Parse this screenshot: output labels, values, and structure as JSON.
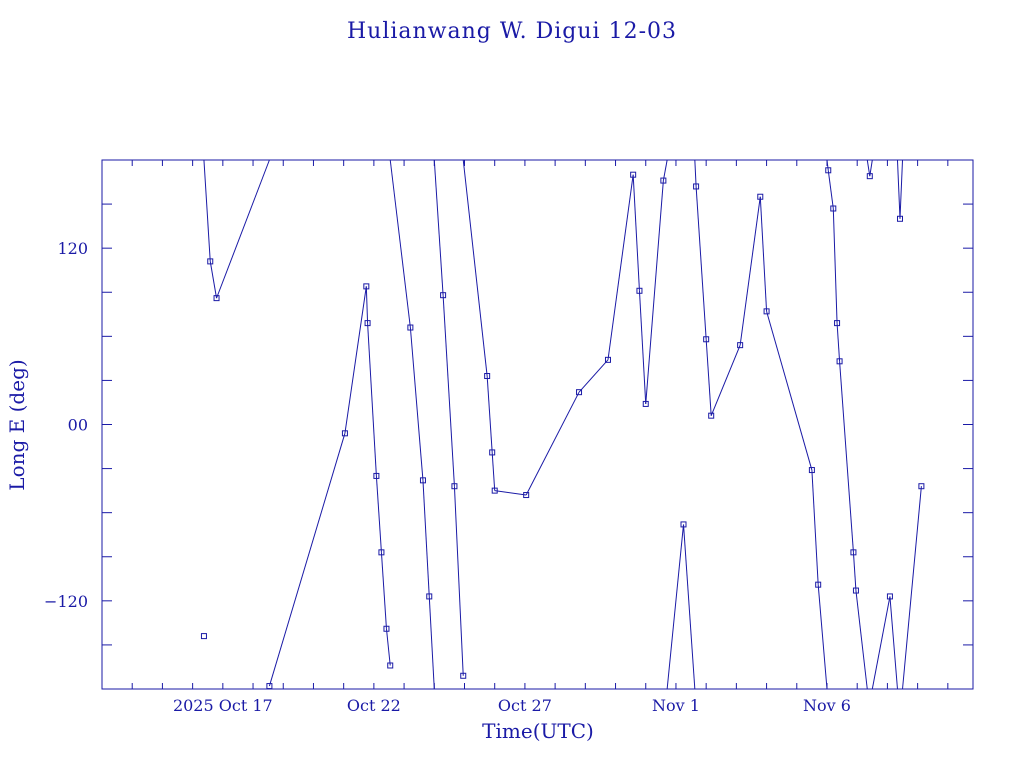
{
  "chart_data": {
    "type": "line",
    "title": "Hulianwang W. Digui 12-03",
    "xlabel": "Time(UTC)",
    "ylabel": "Long E (deg)",
    "ylim": [
      -180,
      180
    ],
    "xlim": [
      "2025-10-13T00:00",
      "2025-11-10T20:00"
    ],
    "x_tick_labels": [
      {
        "x": "2025-10-17T00:00",
        "label": "2025 Oct 17"
      },
      {
        "x": "2025-10-22T00:00",
        "label": "Oct 22"
      },
      {
        "x": "2025-10-27T00:00",
        "label": "Oct 27"
      },
      {
        "x": "2025-11-01T00:00",
        "label": "Nov  1"
      },
      {
        "x": "2025-11-06T00:00",
        "label": "Nov  6"
      }
    ],
    "y_tick_labels": [
      {
        "y": 120,
        "label": "120"
      },
      {
        "y": 0,
        "label": "00"
      },
      {
        "y": -120,
        "label": "−120"
      }
    ],
    "grid": false,
    "color": "#1a1aa6",
    "series": [
      {
        "marker": "square",
        "points": [
          [
            "2025-10-16T09:00",
            -144
          ],
          [
            "2025-10-16T09:00",
            180
          ],
          [
            "2025-10-16T14:00",
            111
          ],
          [
            "2025-10-16T19:00",
            86
          ],
          [
            "2025-10-18T13:00",
            180
          ],
          [
            "2025-10-18T13:00",
            -178
          ],
          [
            "2025-10-21T01:00",
            -6
          ],
          [
            "2025-10-21T18:00",
            94
          ],
          [
            "2025-10-21T19:00",
            69
          ],
          [
            "2025-10-22T02:00",
            -35
          ],
          [
            "2025-10-22T06:00",
            -87
          ],
          [
            "2025-10-22T10:00",
            -139
          ],
          [
            "2025-10-22T13:00",
            -164
          ],
          [
            "2025-10-22T13:00",
            180
          ],
          [
            "2025-10-23T05:00",
            66
          ],
          [
            "2025-10-23T15:00",
            -38
          ],
          [
            "2025-10-23T20:00",
            -117
          ],
          [
            "2025-10-24T00:00",
            -180
          ],
          [
            "2025-10-24T00:00",
            180
          ],
          [
            "2025-10-24T07:00",
            88
          ],
          [
            "2025-10-24T16:00",
            -42
          ],
          [
            "2025-10-24T23:00",
            -171
          ],
          [
            "2025-10-24T23:00",
            180
          ],
          [
            "2025-10-25T18:00",
            33
          ],
          [
            "2025-10-25T22:00",
            -19
          ],
          [
            "2025-10-26T00:00",
            -45
          ],
          [
            "2025-10-27T01:00",
            -48
          ],
          [
            "2025-10-28T19:00",
            22
          ],
          [
            "2025-10-29T18:00",
            44
          ],
          [
            "2025-10-30T14:00",
            170
          ],
          [
            "2025-10-30T19:00",
            91
          ],
          [
            "2025-10-31T00:00",
            14
          ],
          [
            "2025-10-31T14:00",
            166
          ],
          [
            "2025-10-31T17:00",
            180
          ],
          [
            "2025-10-31T17:00",
            -180
          ],
          [
            "2025-11-01T06:00",
            -68
          ],
          [
            "2025-11-01T15:00",
            -180
          ],
          [
            "2025-11-01T15:00",
            180
          ],
          [
            "2025-11-01T16:00",
            162
          ],
          [
            "2025-11-02T00:00",
            58
          ],
          [
            "2025-11-02T04:00",
            6
          ],
          [
            "2025-11-03T03:00",
            54
          ],
          [
            "2025-11-03T19:00",
            155
          ],
          [
            "2025-11-04T00:00",
            77
          ],
          [
            "2025-11-05T12:00",
            -31
          ],
          [
            "2025-11-05T17:00",
            -109
          ],
          [
            "2025-11-06T00:00",
            -180
          ],
          [
            "2025-11-06T00:00",
            180
          ],
          [
            "2025-11-06T01:00",
            173
          ],
          [
            "2025-11-06T05:00",
            147
          ],
          [
            "2025-11-06T08:00",
            69
          ],
          [
            "2025-11-06T10:00",
            43
          ],
          [
            "2025-11-06T21:00",
            -87
          ],
          [
            "2025-11-06T23:00",
            -113
          ],
          [
            "2025-11-07T08:00",
            -180
          ],
          [
            "2025-11-07T08:00",
            180
          ],
          [
            "2025-11-07T10:00",
            169
          ],
          [
            "2025-11-07T12:00",
            180
          ],
          [
            "2025-11-07T12:00",
            -180
          ],
          [
            "2025-11-08T02:00",
            -117
          ],
          [
            "2025-11-08T08:00",
            -180
          ],
          [
            "2025-11-08T08:00",
            180
          ],
          [
            "2025-11-08T10:00",
            140
          ],
          [
            "2025-11-08T12:00",
            180
          ],
          [
            "2025-11-08T12:00",
            -180
          ],
          [
            "2025-11-09T03:00",
            -42
          ]
        ]
      }
    ]
  }
}
